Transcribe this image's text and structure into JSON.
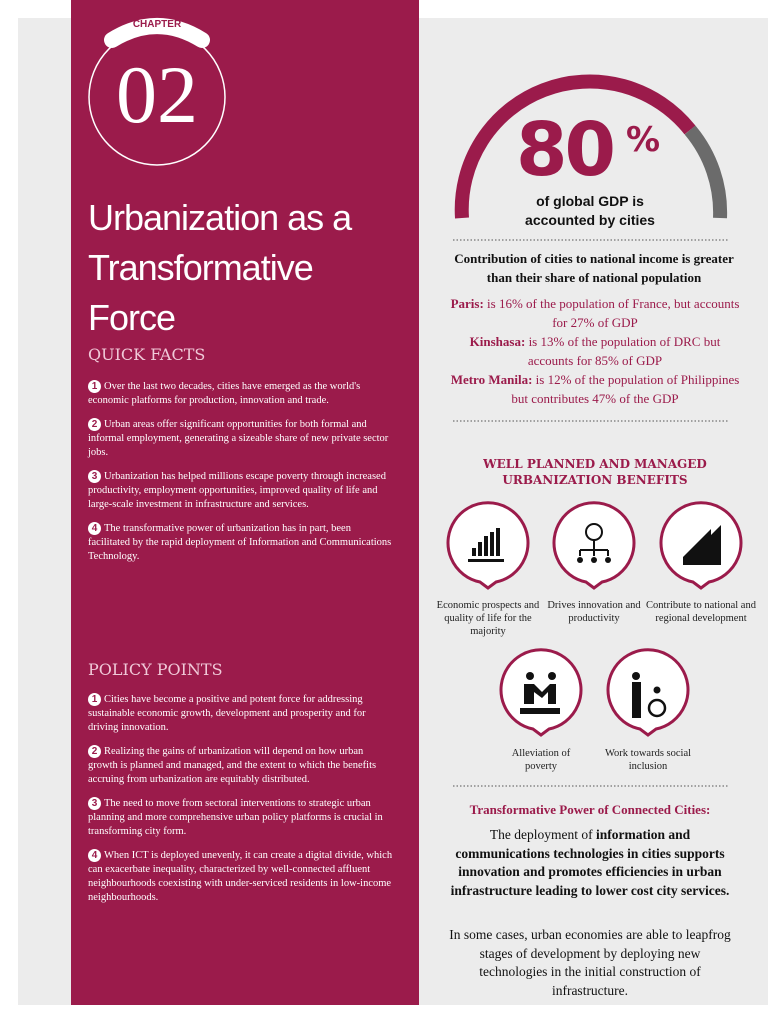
{
  "chapter": {
    "label": "CHAPTER",
    "number": "02"
  },
  "title": [
    "Urbanization as a",
    "Transformative Force"
  ],
  "quick_facts": {
    "heading": "QUICK FACTS",
    "items": [
      {
        "number": "1",
        "text": "Over the last two decades, cities have emerged as the world's economic platforms for production, innovation and trade."
      },
      {
        "number": "2",
        "text": "Urban areas offer significant opportunities for both formal and informal employment, generating a sizeable share of new private sector jobs."
      },
      {
        "number": "3",
        "text": "Urbanization has helped millions escape poverty through increased productivity, employment opportunities, improved quality of life and large-scale investment in infrastructure and services."
      },
      {
        "number": "4",
        "text": "The transformative power of urbanization has in part, been facilitated by the rapid deployment of Information and Communications Technology."
      }
    ]
  },
  "policy_points": {
    "heading": "POLICY POINTS",
    "items": [
      {
        "number": "1",
        "text": "Cities have become a positive and potent force for addressing sustainable economic growth, development and prosperity and for driving innovation."
      },
      {
        "number": "2",
        "text": "Realizing the gains of urbanization will depend on how urban growth is planned and managed, and the extent to which the benefits accruing from urbanization are equitably distributed."
      },
      {
        "number": "3",
        "text": "The need to move from sectoral interventions to strategic urban planning and more comprehensive urban policy platforms is crucial in transforming city form."
      },
      {
        "number": "4",
        "text": "When ICT is deployed unevenly, it can create a digital divide, which can exacerbate inequality, characterized by well-connected affluent neighbourhoods coexisting with under-serviced residents in low-income neighbourhoods."
      }
    ]
  },
  "gdp": {
    "value": "80",
    "unit": "%",
    "caption": "of global GDP is accounted by cities"
  },
  "contribution": {
    "heading": "Contribution of cities to national income is greater than their share of national population",
    "examples": [
      {
        "city": "Paris:",
        "text": "is 16% of the population of France, but accounts for 27% of GDP"
      },
      {
        "city": "Kinshasa:",
        "text": "is 13% of the population of DRC but accounts for 85% of GDP"
      },
      {
        "city": "Metro Manila:",
        "text": "is 12% of the population of Philippines but contributes 47% of the GDP"
      }
    ]
  },
  "benefits": {
    "heading": "WELL PLANNED AND MANAGED URBANIZATION BENEFITS",
    "items": [
      "Economic prospects and quality of life for the majority",
      "Drives innovation and productivity",
      "Contribute to national and regional development",
      "Alleviation of poverty",
      "Work towards social inclusion"
    ]
  },
  "connected": {
    "heading": "Transformative Power of Connected Cities:",
    "lead_plain": "The deployment of",
    "lead_bold": "information and communications technologies in cities supports innovation and promotes efficiencies in urban infrastructure leading to lower cost city services.",
    "body": "In some cases, urban economies are able to leapfrog stages of development by deploying new technologies in the initial construction of infrastructure."
  }
}
